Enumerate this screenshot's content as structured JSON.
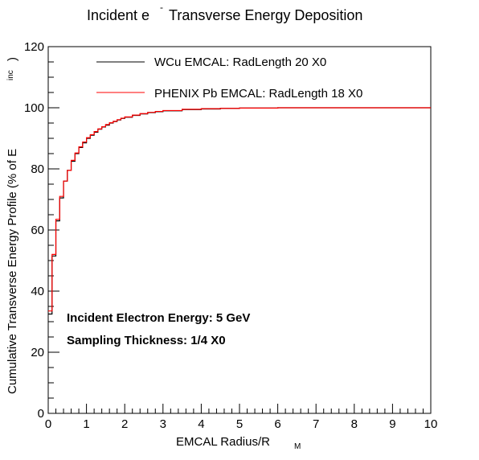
{
  "chart_data": {
    "type": "line",
    "title": "Incident e",
    "title_sup": "-",
    "title_rest": "Transverse Energy Deposition",
    "xlabel": "EMCAL Radius/R",
    "xlabel_sub": "M",
    "ylabel": "Cumulative Transverse Energy Profile (% of E",
    "ylabel_sub": "inc",
    "ylabel_close": ")",
    "xlim": [
      0,
      10
    ],
    "ylim": [
      0,
      120
    ],
    "x_ticks": [
      "0",
      "1",
      "2",
      "3",
      "4",
      "5",
      "6",
      "7",
      "8",
      "9",
      "10"
    ],
    "y_ticks": [
      "0",
      "20",
      "40",
      "60",
      "80",
      "100",
      "120"
    ],
    "grid": false,
    "legend_position": "top",
    "annotations": [
      "Incident Electron Energy: 5 GeV",
      "Sampling Thickness: 1/4 X0"
    ],
    "bin_width": 0.1,
    "series": [
      {
        "name": "WCu EMCAL: RadLength 20 X0",
        "color": "#000000",
        "x": [
          0,
          0.1,
          0.2,
          0.3,
          0.4,
          0.5,
          0.6,
          0.7,
          0.8,
          0.9,
          1.0,
          1.1,
          1.2,
          1.3,
          1.4,
          1.5,
          1.6,
          1.7,
          1.8,
          1.9,
          2.0,
          2.2,
          2.4,
          2.6,
          2.8,
          3.0,
          3.5,
          4.0,
          4.5,
          5.0,
          6.0,
          7.0,
          8.0,
          9.0
        ],
        "values": [
          32.5,
          51.5,
          63,
          70.5,
          76,
          79.5,
          82.5,
          85,
          87,
          88.5,
          90,
          91,
          92,
          93,
          93.7,
          94.3,
          95,
          95.5,
          96,
          96.5,
          96.9,
          97.5,
          98,
          98.4,
          98.7,
          99,
          99.4,
          99.6,
          99.8,
          99.9,
          100,
          100,
          100,
          100
        ]
      },
      {
        "name": "PHENIX Pb EMCAL: RadLength 18 X0",
        "color": "#ff0000",
        "x": [
          0,
          0.1,
          0.2,
          0.3,
          0.4,
          0.5,
          0.6,
          0.7,
          0.8,
          0.9,
          1.0,
          1.1,
          1.2,
          1.3,
          1.4,
          1.5,
          1.6,
          1.7,
          1.8,
          1.9,
          2.0,
          2.2,
          2.4,
          2.6,
          2.8,
          3.0,
          3.5,
          4.0,
          4.5,
          5.0,
          6.0,
          7.0,
          8.0,
          9.0
        ],
        "values": [
          33.5,
          52,
          63.5,
          71,
          76,
          79.5,
          82.8,
          85.2,
          87.2,
          88.8,
          90.2,
          91.2,
          92.2,
          93.1,
          93.8,
          94.5,
          95.1,
          95.6,
          96.1,
          96.6,
          97,
          97.6,
          98.1,
          98.5,
          98.8,
          99.1,
          99.5,
          99.7,
          99.8,
          99.9,
          100,
          100,
          100,
          100
        ]
      }
    ]
  }
}
